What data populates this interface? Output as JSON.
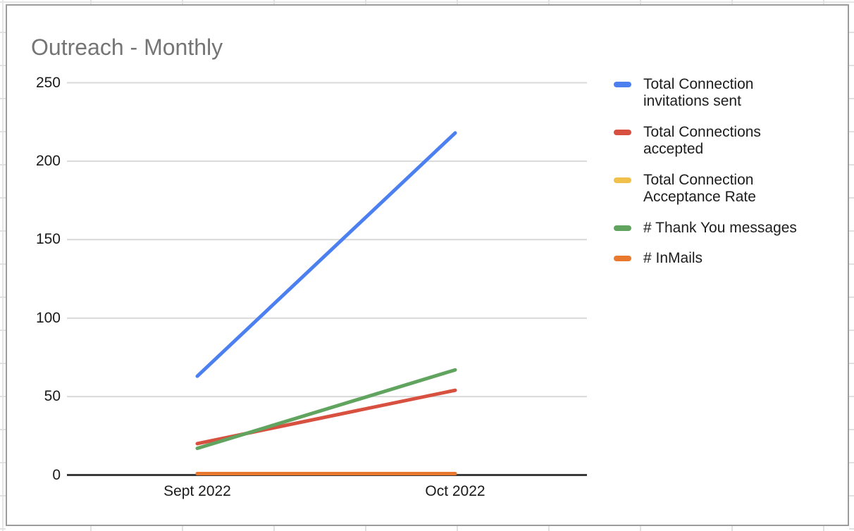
{
  "chart_data": {
    "type": "line",
    "title": "Outreach - Monthly",
    "categories": [
      "Sept 2022",
      "Oct 2022"
    ],
    "series": [
      {
        "name": "Total Connection invitations sent",
        "color": "#4c80f1",
        "values": [
          63,
          218
        ]
      },
      {
        "name": "Total Connections accepted",
        "color": "#d8503f",
        "values": [
          20,
          54
        ]
      },
      {
        "name": "Total Connection Acceptance Rate",
        "color": "#f0c04b",
        "values": [
          0,
          0
        ]
      },
      {
        "name": "# Thank You messages",
        "color": "#61a45f",
        "values": [
          17,
          67
        ]
      },
      {
        "name": "# InMails",
        "color": "#e8792f",
        "values": [
          0,
          0
        ]
      }
    ],
    "yticks": [
      0,
      50,
      100,
      150,
      200,
      250
    ],
    "ylim": [
      0,
      250
    ],
    "xlabel": "",
    "ylabel": "",
    "grid": true,
    "legend_position": "right"
  },
  "colors": {
    "title_text": "#757575",
    "axis_line": "#3a3a3a",
    "grid_line": "#d9d9d9",
    "tick_text": "#1a1a1a",
    "chart_border": "#9c9c9c",
    "sheet_gridline": "#e1e1e1"
  }
}
